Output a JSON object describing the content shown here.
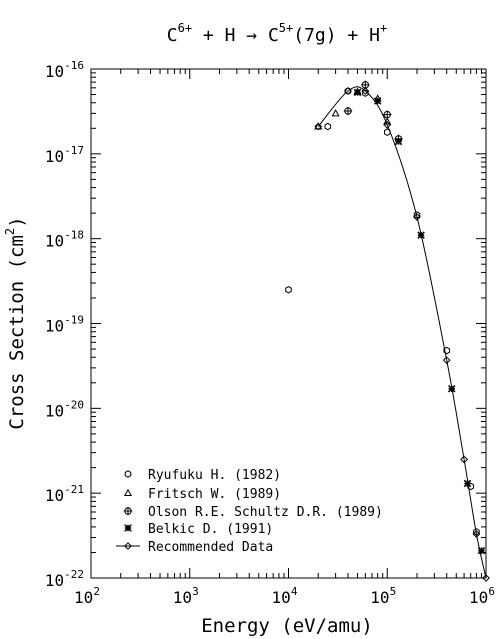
{
  "chart_data": {
    "type": "scatter",
    "title": {
      "parts": [
        {
          "text": "C",
          "sup": "6+"
        },
        {
          "text": " + H → C",
          "sup": "5+"
        },
        {
          "text": "(7g) + H",
          "sup": "+"
        }
      ]
    },
    "xlabel": "Energy (eV/amu)",
    "ylabel": {
      "before": "Cross Section (cm",
      "sup": "2",
      "after": ")"
    },
    "x_scale": "log",
    "y_scale": "log",
    "xlim": [
      100,
      1000000
    ],
    "ylim": [
      1e-22,
      1e-16
    ],
    "x_ticks": [
      {
        "value": 100,
        "base": "10",
        "exp": "2"
      },
      {
        "value": 1000,
        "base": "10",
        "exp": "3"
      },
      {
        "value": 10000,
        "base": "10",
        "exp": "4"
      },
      {
        "value": 100000,
        "base": "10",
        "exp": "5"
      },
      {
        "value": 1000000,
        "base": "10",
        "exp": "6"
      }
    ],
    "y_ticks": [
      {
        "value": 1e-22,
        "base": "10",
        "exp": "-22"
      },
      {
        "value": 1e-21,
        "base": "10",
        "exp": "-21"
      },
      {
        "value": 1e-20,
        "base": "10",
        "exp": "-20"
      },
      {
        "value": 1e-19,
        "base": "10",
        "exp": "-19"
      },
      {
        "value": 1e-18,
        "base": "10",
        "exp": "-18"
      },
      {
        "value": 1e-17,
        "base": "10",
        "exp": "-17"
      },
      {
        "value": 1e-16,
        "base": "10",
        "exp": "-16"
      }
    ],
    "grid": false,
    "legend_position": "bottom-left",
    "series": [
      {
        "name": "Ryufuku H. (1982)",
        "marker": "hexagon",
        "points": [
          {
            "x": 10000,
            "y": 2.5e-19
          },
          {
            "x": 25000,
            "y": 2.1e-17
          },
          {
            "x": 40000,
            "y": 5.5e-17
          },
          {
            "x": 60000,
            "y": 5.2e-17
          },
          {
            "x": 100000,
            "y": 1.8e-17
          },
          {
            "x": 200000,
            "y": 1.9e-18
          },
          {
            "x": 400000,
            "y": 4.8e-20
          },
          {
            "x": 700000,
            "y": 1.2e-21
          },
          {
            "x": 800000,
            "y": 3.5e-22
          }
        ]
      },
      {
        "name": "Fritsch W. (1989)",
        "marker": "triangle",
        "points": [
          {
            "x": 20000,
            "y": 2.1e-17
          },
          {
            "x": 30000,
            "y": 3e-17
          },
          {
            "x": 50000,
            "y": 5.4e-17
          },
          {
            "x": 80000,
            "y": 4.5e-17
          },
          {
            "x": 100000,
            "y": 2.4e-17
          }
        ]
      },
      {
        "name": "Olson R.E. Schultz D.R. (1989)",
        "marker": "plus-circle",
        "points": [
          {
            "x": 40000,
            "y": 3.2e-17
          },
          {
            "x": 60000,
            "y": 6.5e-17
          },
          {
            "x": 100000,
            "y": 2.9e-17
          },
          {
            "x": 130000,
            "y": 1.5e-17
          }
        ]
      },
      {
        "name": "Belkic D. (1991)",
        "marker": "asterisk",
        "points": [
          {
            "x": 50000,
            "y": 5.3e-17
          },
          {
            "x": 80000,
            "y": 4.2e-17
          },
          {
            "x": 130000,
            "y": 1.4e-17
          },
          {
            "x": 220000,
            "y": 1.1e-18
          },
          {
            "x": 450000,
            "y": 1.7e-20
          },
          {
            "x": 650000,
            "y": 1.3e-21
          },
          {
            "x": 900000,
            "y": 2.1e-22
          }
        ]
      },
      {
        "name": "Recommended Data",
        "marker": "diamond",
        "line": true,
        "points": [
          {
            "x": 20000,
            "y": 2.1e-17
          },
          {
            "x": 40000,
            "y": 5.5e-17
          },
          {
            "x": 60000,
            "y": 5.5e-17
          },
          {
            "x": 100000,
            "y": 2.2e-17
          },
          {
            "x": 200000,
            "y": 1.8e-18
          },
          {
            "x": 400000,
            "y": 3.7e-20
          },
          {
            "x": 600000,
            "y": 2.5e-21
          },
          {
            "x": 800000,
            "y": 3.3e-22
          },
          {
            "x": 1000000,
            "y": 1e-22
          }
        ]
      }
    ]
  }
}
